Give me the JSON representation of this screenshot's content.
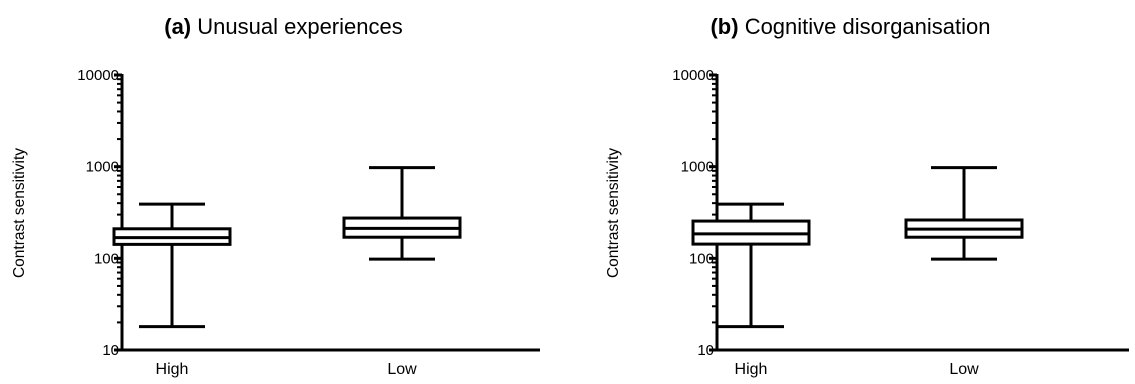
{
  "chart_data": [
    {
      "type": "box",
      "panel_tag": "(a)",
      "title": "Unusual experiences",
      "xlabel": "",
      "ylabel": "Contrast sensitivity",
      "yscale": "log",
      "ylim": [
        10,
        10000
      ],
      "yticks": [
        10,
        100,
        1000,
        10000
      ],
      "ytick_labels": [
        "10",
        "100",
        "1000",
        "10000"
      ],
      "grid": false,
      "categories": [
        "High",
        "Low"
      ],
      "boxes": [
        {
          "category": "High",
          "min": 18,
          "q1": 142,
          "median": 168,
          "q3": 210,
          "max": 390
        },
        {
          "category": "Low",
          "min": 98,
          "q1": 170,
          "median": 212,
          "q3": 275,
          "max": 975
        }
      ]
    },
    {
      "type": "box",
      "panel_tag": "(b)",
      "title": "Cognitive disorganisation",
      "xlabel": "",
      "ylabel": "Contrast sensitivity",
      "yscale": "log",
      "ylim": [
        10,
        10000
      ],
      "yticks": [
        10,
        100,
        1000,
        10000
      ],
      "ytick_labels": [
        "10",
        "100",
        "1000",
        "10000"
      ],
      "grid": false,
      "categories": [
        "High",
        "Low"
      ],
      "boxes": [
        {
          "category": "High",
          "min": 18,
          "q1": 143,
          "median": 185,
          "q3": 255,
          "max": 390
        },
        {
          "category": "Low",
          "min": 98,
          "q1": 170,
          "median": 208,
          "q3": 262,
          "max": 975
        }
      ]
    }
  ]
}
